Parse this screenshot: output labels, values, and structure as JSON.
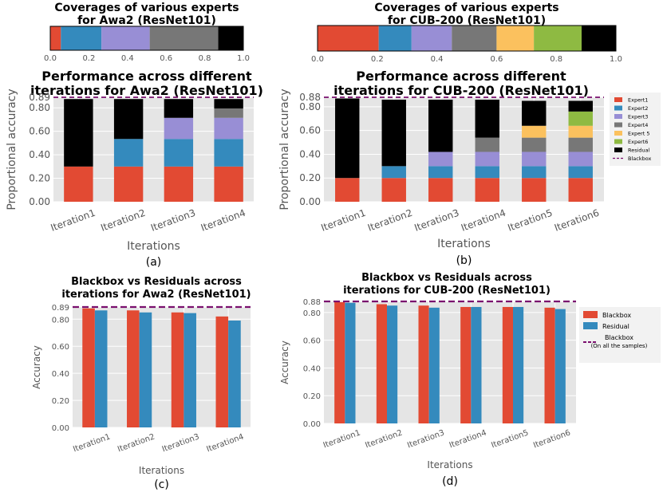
{
  "colors": {
    "expert1": "#e24a33",
    "expert2": "#348abd",
    "expert3": "#988ed5",
    "expert4": "#777777",
    "expert5": "#fbc15e",
    "expert6": "#8eba42",
    "residual": "#000000",
    "blackbox_line": "#7a0f6e",
    "panel_bg": "#e5e5e5"
  },
  "chart_data": [
    {
      "id": "cov-awa2",
      "type": "bar",
      "orientation": "horizontal-stacked",
      "title_lines": [
        "Coverages of various experts",
        "for Awa2 (ResNet101)"
      ],
      "segments": [
        {
          "name": "Expert1",
          "value": 0.055
        },
        {
          "name": "Expert2",
          "value": 0.21
        },
        {
          "name": "Expert3",
          "value": 0.25
        },
        {
          "name": "Expert4",
          "value": 0.355
        },
        {
          "name": "Residual",
          "value": 0.13
        }
      ],
      "ticks": [
        "0.0",
        "0.2",
        "0.4",
        "0.6",
        "0.8",
        "1.0"
      ],
      "xlim": [
        0,
        1
      ]
    },
    {
      "id": "cov-cub",
      "type": "bar",
      "orientation": "horizontal-stacked",
      "title_lines": [
        "Coverages of various experts",
        "for CUB-200 (ResNet101)"
      ],
      "segments": [
        {
          "name": "Expert1",
          "value": 0.205
        },
        {
          "name": "Expert2",
          "value": 0.11
        },
        {
          "name": "Expert3",
          "value": 0.135
        },
        {
          "name": "Expert4",
          "value": 0.15
        },
        {
          "name": "Expert 5",
          "value": 0.125
        },
        {
          "name": "Expert6",
          "value": 0.16
        },
        {
          "name": "Residual",
          "value": 0.115
        }
      ],
      "ticks": [
        "0.0",
        "0.2",
        "0.4",
        "0.6",
        "0.8",
        "1.0"
      ],
      "xlim": [
        0,
        1
      ]
    },
    {
      "id": "perf-awa2",
      "type": "bar",
      "stacked": true,
      "title_lines": [
        "Performance across different",
        "iterations for Awa2 (ResNet101)"
      ],
      "ylabel": "Proportional accuracy",
      "xlabel": "Iterations",
      "caption": "(a)",
      "categories": [
        "Iteration1",
        "Iteration2",
        "Iteration3",
        "Iteration4"
      ],
      "series": [
        {
          "name": "Expert1",
          "values": [
            0.3,
            0.3,
            0.3,
            0.3
          ]
        },
        {
          "name": "Expert2",
          "values": [
            0,
            0.235,
            0.235,
            0.235
          ]
        },
        {
          "name": "Expert3",
          "values": [
            0,
            0,
            0.18,
            0.18
          ]
        },
        {
          "name": "Expert4",
          "values": [
            0,
            0,
            0,
            0.08
          ]
        },
        {
          "name": "Residual",
          "values": [
            0.575,
            0.34,
            0.16,
            0.08
          ]
        }
      ],
      "blackbox": 0.89,
      "ylim": [
        0,
        0.89
      ],
      "yticks": [
        "0.00",
        "0.20",
        "0.40",
        "0.60",
        "0.80",
        "0.89"
      ]
    },
    {
      "id": "perf-cub",
      "type": "bar",
      "stacked": true,
      "title_lines": [
        "Performance across different",
        "iterations for CUB-200 (ResNet101)"
      ],
      "ylabel": "Proportional accuracy",
      "xlabel": "Iterations",
      "caption": "(b)",
      "categories": [
        "Iteration1",
        "Iteration2",
        "Iteration3",
        "Iteration4",
        "Iteration5",
        "Iteration6"
      ],
      "series": [
        {
          "name": "Expert1",
          "values": [
            0.2,
            0.2,
            0.2,
            0.2,
            0.2,
            0.2
          ]
        },
        {
          "name": "Expert2",
          "values": [
            0,
            0.1,
            0.1,
            0.1,
            0.1,
            0.1
          ]
        },
        {
          "name": "Expert3",
          "values": [
            0,
            0,
            0.12,
            0.12,
            0.12,
            0.12
          ]
        },
        {
          "name": "Expert4",
          "values": [
            0,
            0,
            0,
            0.12,
            0.12,
            0.12
          ]
        },
        {
          "name": "Expert 5",
          "values": [
            0,
            0,
            0,
            0,
            0.1,
            0.1
          ]
        },
        {
          "name": "Expert6",
          "values": [
            0,
            0,
            0,
            0,
            0,
            0.12
          ]
        },
        {
          "name": "Residual",
          "values": [
            0.67,
            0.56,
            0.44,
            0.32,
            0.21,
            0.09
          ]
        }
      ],
      "blackbox": 0.88,
      "ylim": [
        0,
        0.88
      ],
      "yticks": [
        "0.00",
        "0.20",
        "0.40",
        "0.60",
        "0.80",
        "0.88"
      ],
      "legend": [
        "Expert1",
        "Expert2",
        "Expert3",
        "Expert4",
        "Expert 5",
        "Expert6",
        "Residual",
        "Blackbox"
      ],
      "legend_position": "right"
    },
    {
      "id": "bb-awa2",
      "type": "bar",
      "grouped": true,
      "title_lines": [
        "Blackbox vs Residuals across",
        "iterations for Awa2 (ResNet101)"
      ],
      "ylabel": "Accuracy",
      "xlabel": "Iterations",
      "caption": "(c)",
      "categories": [
        "Iteration1",
        "Iteration2",
        "Iteration3",
        "Iteration4"
      ],
      "series": [
        {
          "name": "Blackbox",
          "values": [
            0.88,
            0.865,
            0.85,
            0.82
          ]
        },
        {
          "name": "Residual",
          "values": [
            0.865,
            0.85,
            0.845,
            0.79
          ]
        }
      ],
      "blackbox": 0.89,
      "ylim": [
        0,
        0.89
      ],
      "yticks": [
        "0.00",
        "0.20",
        "0.40",
        "0.60",
        "0.80",
        "0.89"
      ]
    },
    {
      "id": "bb-cub",
      "type": "bar",
      "grouped": true,
      "title_lines": [
        "Blackbox vs Residuals across",
        "iterations for CUB-200 (ResNet101)"
      ],
      "ylabel": "Accuracy",
      "xlabel": "Iterations",
      "caption": "(d)",
      "categories": [
        "Iteration1",
        "Iteration2",
        "Iteration3",
        "Iteration4",
        "Iteration5",
        "Iteration6"
      ],
      "series": [
        {
          "name": "Blackbox",
          "values": [
            0.875,
            0.86,
            0.85,
            0.84,
            0.84,
            0.835
          ]
        },
        {
          "name": "Residual",
          "values": [
            0.87,
            0.85,
            0.835,
            0.84,
            0.84,
            0.825
          ]
        }
      ],
      "blackbox": 0.88,
      "ylim": [
        0,
        0.88
      ],
      "yticks": [
        "0.00",
        "0.20",
        "0.40",
        "0.60",
        "0.80",
        "0.88"
      ],
      "legend": [
        "Blackbox",
        "Residual",
        "Blackbox",
        "(On all the samples)"
      ],
      "legend_position": "right"
    }
  ]
}
